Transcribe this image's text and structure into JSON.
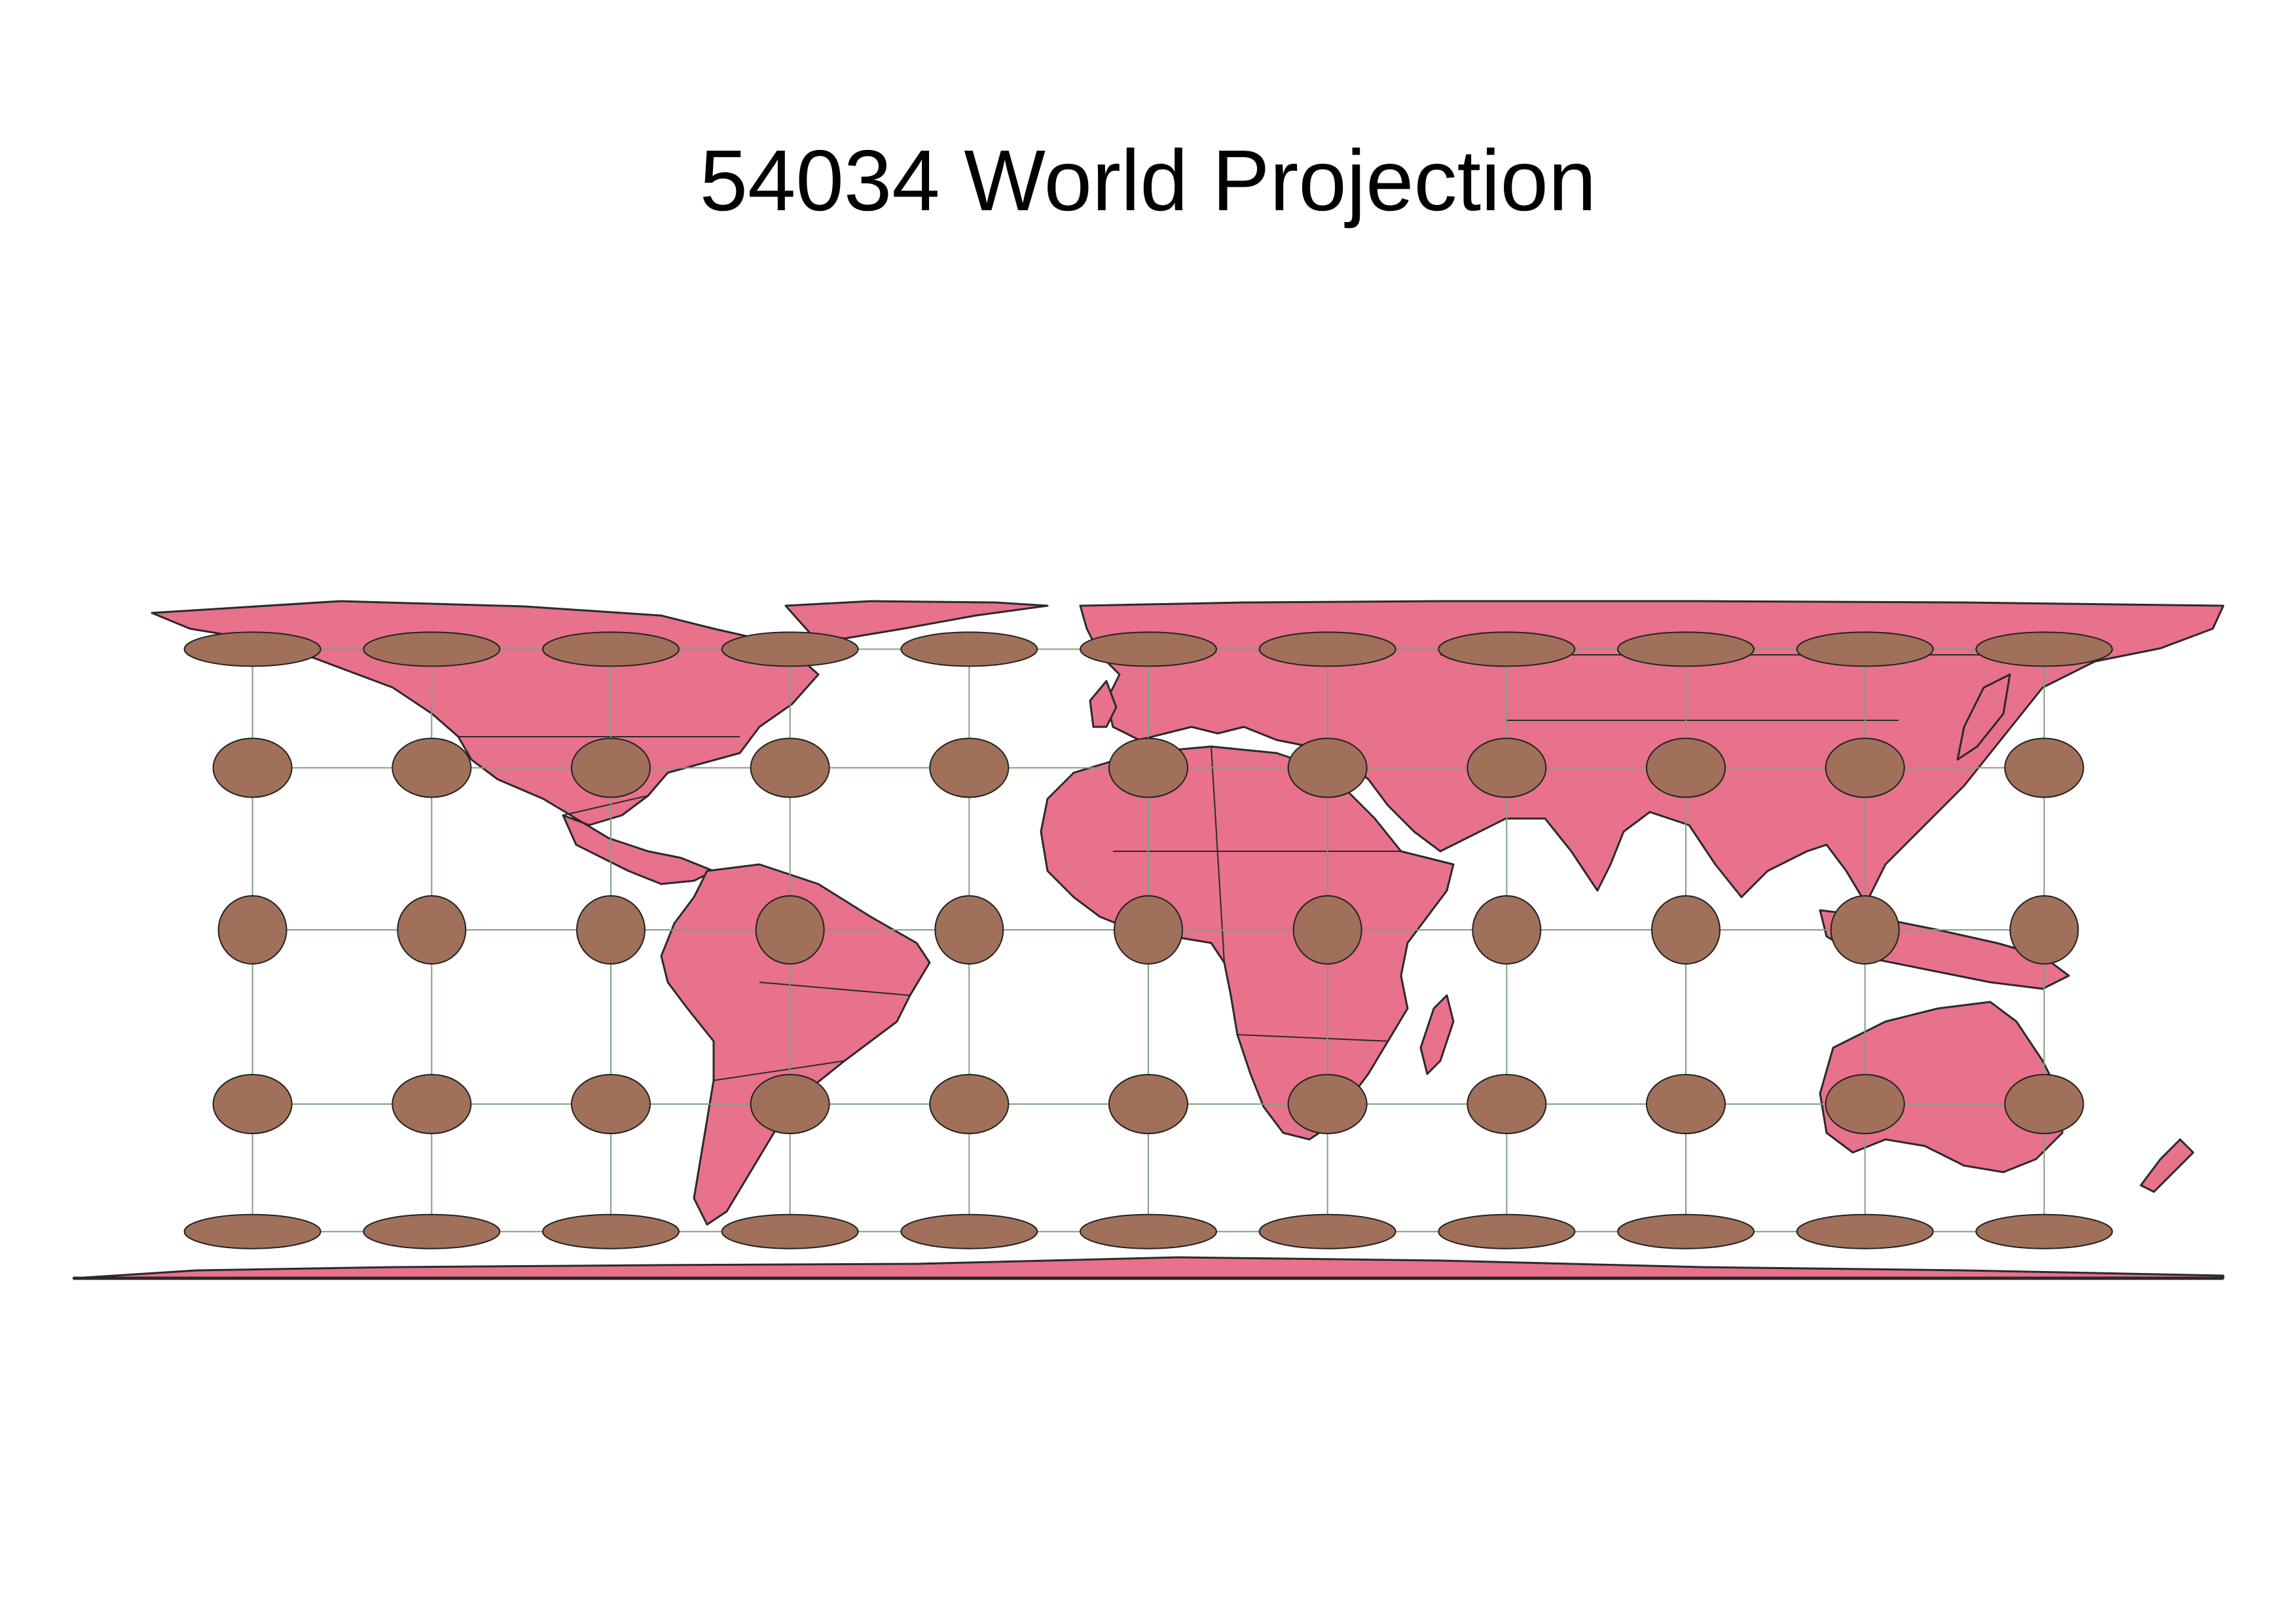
{
  "title": "54034 World Projection",
  "projection_code": "54034",
  "colors": {
    "land": "#E8718C",
    "coast": "#2a2a2a",
    "ellipse_fill": "#A0705A",
    "ellipse_stroke": "#222222",
    "graticule": "#7FA07F",
    "background": "#ffffff"
  },
  "graticule": {
    "meridians_deg": [
      -150,
      -120,
      -90,
      -60,
      -30,
      0,
      30,
      60,
      90,
      120,
      150
    ],
    "parallels_deg": [
      -60,
      -30,
      0,
      30,
      60
    ]
  },
  "indicatrix": {
    "longitudes_deg": [
      -150,
      -120,
      -90,
      -60,
      -30,
      0,
      30,
      60,
      90,
      120,
      150
    ],
    "latitudes_deg": [
      60,
      30,
      0,
      -30,
      -60
    ]
  }
}
